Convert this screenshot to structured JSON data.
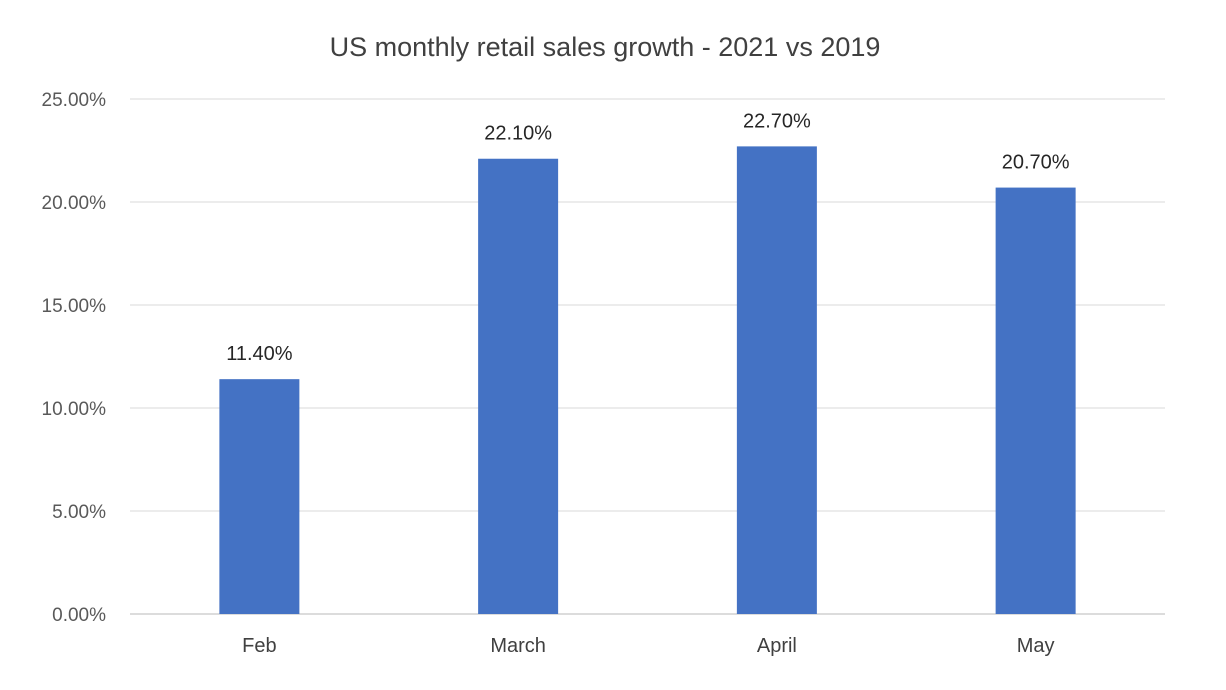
{
  "chart_data": {
    "type": "bar",
    "title": "US monthly retail sales growth - 2021 vs 2019",
    "xlabel": "",
    "ylabel": "",
    "categories": [
      "Feb",
      "March",
      "April",
      "May"
    ],
    "values": [
      11.4,
      22.1,
      22.7,
      20.7
    ],
    "data_labels": [
      "11.40%",
      "22.10%",
      "22.70%",
      "20.70%"
    ],
    "ylim": [
      0,
      25
    ],
    "yticks": [
      0,
      5,
      10,
      15,
      20,
      25
    ],
    "ytick_labels": [
      "0.00%",
      "5.00%",
      "10.00%",
      "15.00%",
      "20.00%",
      "25.00%"
    ],
    "grid": true,
    "legend": "none",
    "colors": {
      "bar": "#4472c4",
      "grid": "#d9d9d9",
      "title": "#404040"
    }
  }
}
